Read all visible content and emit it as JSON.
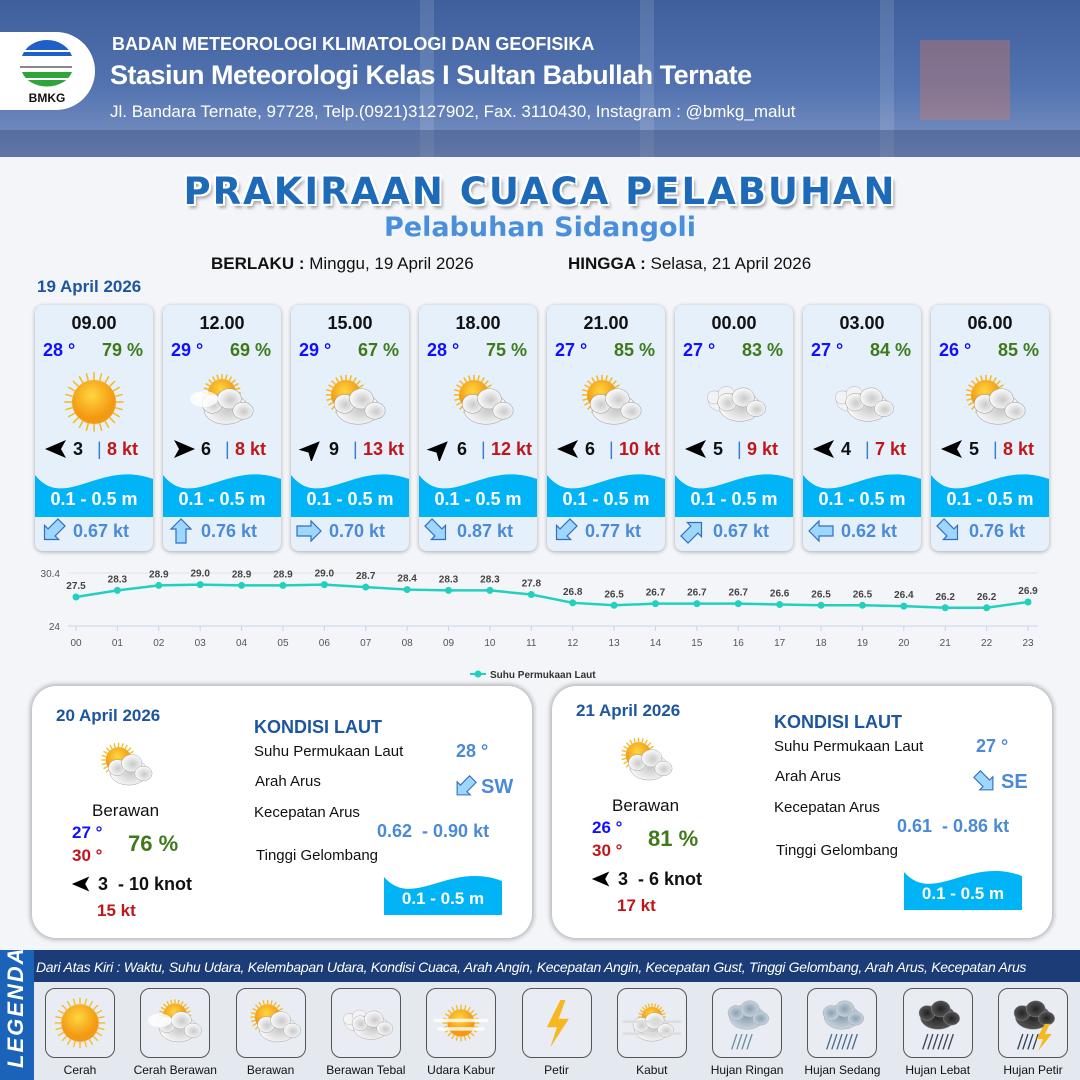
{
  "header": {
    "logo_text": "BMKG",
    "agency": "BADAN METEOROLOGI KLIMATOLOGI DAN GEOFISIKA",
    "station": "Stasiun Meteorologi Kelas I Sultan Babullah Ternate",
    "contact": "Jl. Bandara Ternate, 97728, Telp.(0921)3127902, Fax. 3110430, Instagram : @bmkg_malut"
  },
  "title": "PRAKIRAAN CUACA PELABUHAN",
  "subtitle": "Pelabuhan Sidangoli",
  "validity": {
    "from_label": "BERLAKU :",
    "from": "Minggu, 19 April 2026",
    "to_label": "HINGGA :",
    "to": "Selasa, 21 April 2026"
  },
  "day1": {
    "date": "19 April 2026",
    "forecasts": [
      {
        "time": "09.00",
        "temp": "28 °",
        "humidity": "79 %",
        "weather": "cerah",
        "wind_dir": "W",
        "wind_speed": "3",
        "gust": "8 kt",
        "wave": "0.1 - 0.5 m",
        "current_dir": "SW",
        "current_speed": "0.67 kt"
      },
      {
        "time": "12.00",
        "temp": "29 °",
        "humidity": "69 %",
        "weather": "cerah-berawan",
        "wind_dir": "E",
        "wind_speed": "6",
        "gust": "8 kt",
        "wave": "0.1 - 0.5 m",
        "current_dir": "N",
        "current_speed": "0.76 kt"
      },
      {
        "time": "15.00",
        "temp": "29 °",
        "humidity": "67 %",
        "weather": "berawan",
        "wind_dir": "NE",
        "wind_speed": "9",
        "gust": "13 kt",
        "wave": "0.1 - 0.5 m",
        "current_dir": "E",
        "current_speed": "0.70 kt"
      },
      {
        "time": "18.00",
        "temp": "28 °",
        "humidity": "75 %",
        "weather": "berawan",
        "wind_dir": "NE",
        "wind_speed": "6",
        "gust": "12 kt",
        "wave": "0.1 - 0.5 m",
        "current_dir": "SE",
        "current_speed": "0.87 kt"
      },
      {
        "time": "21.00",
        "temp": "27 °",
        "humidity": "85 %",
        "weather": "berawan",
        "wind_dir": "W",
        "wind_speed": "6",
        "gust": "10 kt",
        "wave": "0.1 - 0.5 m",
        "current_dir": "SW",
        "current_speed": "0.77 kt"
      },
      {
        "time": "00.00",
        "temp": "27 °",
        "humidity": "83 %",
        "weather": "berawan-tebal",
        "wind_dir": "W",
        "wind_speed": "5",
        "gust": "9 kt",
        "wave": "0.1 - 0.5 m",
        "current_dir": "NE",
        "current_speed": "0.67 kt"
      },
      {
        "time": "03.00",
        "temp": "27 °",
        "humidity": "84 %",
        "weather": "berawan-tebal",
        "wind_dir": "W",
        "wind_speed": "4",
        "gust": "7 kt",
        "wave": "0.1 - 0.5 m",
        "current_dir": "W",
        "current_speed": "0.62 kt"
      },
      {
        "time": "06.00",
        "temp": "26 °",
        "humidity": "85 %",
        "weather": "berawan",
        "wind_dir": "W",
        "wind_speed": "5",
        "gust": "8 kt",
        "wave": "0.1 - 0.5 m",
        "current_dir": "SE",
        "current_speed": "0.76 kt"
      }
    ]
  },
  "chart_data": {
    "type": "line",
    "categories": [
      "00",
      "01",
      "02",
      "03",
      "04",
      "05",
      "06",
      "07",
      "08",
      "09",
      "10",
      "11",
      "12",
      "13",
      "14",
      "15",
      "16",
      "17",
      "18",
      "19",
      "20",
      "21",
      "22",
      "23"
    ],
    "series": [
      {
        "name": "Suhu Permukaan Laut",
        "values": [
          27.5,
          28.3,
          28.9,
          29.0,
          28.9,
          28.9,
          29.0,
          28.7,
          28.4,
          28.3,
          28.3,
          27.8,
          26.8,
          26.5,
          26.7,
          26.7,
          26.7,
          26.6,
          26.5,
          26.5,
          26.4,
          26.2,
          26.2,
          26.9
        ],
        "color": "#22d0c0"
      }
    ],
    "ylim": [
      24,
      30.4
    ],
    "yticks": [
      "24",
      "30.4"
    ],
    "grid": true,
    "legend": "bottom"
  },
  "panels": [
    {
      "date": "20 April 2026",
      "weather": "berawan",
      "condition": "Berawan",
      "temp_min": "27 °",
      "temp_max": "30 °",
      "humidity": "76 %",
      "wind_dir": "W",
      "wind": "3  - 10 knot",
      "gust": "15 kt",
      "sea_title": "KONDISI LAUT",
      "sst_label": "Suhu Permukaan Laut",
      "sst": "28 °",
      "current_dir_label": "Arah Arus",
      "current_dir": "SW",
      "current_speed_label": "Kecepatan Arus",
      "current_speed": "0.62  - 0.90 kt",
      "wave_label": "Tinggi Gelombang",
      "wave": "0.1 - 0.5 m"
    },
    {
      "date": "21 April 2026",
      "weather": "berawan",
      "condition": "Berawan",
      "temp_min": "26 °",
      "temp_max": "30 °",
      "humidity": "81 %",
      "wind_dir": "W",
      "wind": "3  - 6 knot",
      "gust": "17 kt",
      "sea_title": "KONDISI LAUT",
      "sst_label": "Suhu Permukaan Laut",
      "sst": "27 °",
      "current_dir_label": "Arah Arus",
      "current_dir": "SE",
      "current_speed_label": "Kecepatan Arus",
      "current_speed": "0.61  - 0.86 kt",
      "wave_label": "Tinggi Gelombang",
      "wave": "0.1 - 0.5 m"
    }
  ],
  "legend": {
    "title": "LEGENDA",
    "description": "Dari Atas Kiri : Waktu, Suhu Udara, Kelembapan Udara, Kondisi Cuaca, Arah Angin, Kecepatan Angin, Kecepatan Gust, Tinggi Gelombang, Arah Arus, Kecepatan Arus",
    "items": [
      {
        "label": "Cerah",
        "icon": "cerah"
      },
      {
        "label": "Cerah Berawan",
        "icon": "cerah-berawan"
      },
      {
        "label": "Berawan",
        "icon": "berawan"
      },
      {
        "label": "Berawan Tebal",
        "icon": "berawan-tebal"
      },
      {
        "label": "Udara Kabur",
        "icon": "udara-kabur"
      },
      {
        "label": "Petir",
        "icon": "petir"
      },
      {
        "label": "Kabut",
        "icon": "kabut"
      },
      {
        "label": "Hujan Ringan",
        "icon": "hujan-ringan"
      },
      {
        "label": "Hujan Sedang",
        "icon": "hujan-sedang"
      },
      {
        "label": "Hujan Lebat",
        "icon": "hujan-lebat"
      },
      {
        "label": "Hujan Petir",
        "icon": "hujan-petir"
      }
    ]
  }
}
